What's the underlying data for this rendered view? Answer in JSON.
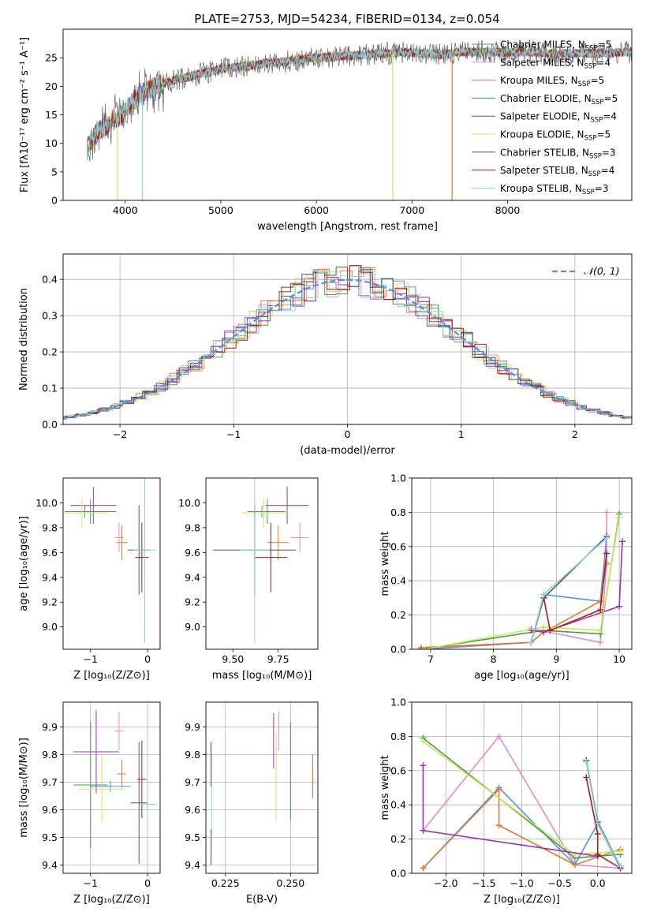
{
  "title": "PLATE=2753, MJD=54234, FIBERID=0134, z=0.054",
  "colors": {
    "c0": "#5a8ed6",
    "c1": "#e58cc8",
    "c2": "#e07b30",
    "c3": "#4a9a52",
    "c4": "#9a35b8",
    "c5": "#c9e85a",
    "c6": "#555555",
    "c7": "#a51c1c",
    "c8": "#8ad3e2",
    "ref": "#5a8ed6"
  },
  "legend_spectrum": [
    {
      "main": "Chabrier MILES, N",
      "sub": "SSP",
      "tail": "=5",
      "color": "c0"
    },
    {
      "main": "Salpeter MILES, N",
      "sub": "SSP",
      "tail": "=4",
      "color": "c1"
    },
    {
      "main": "Kroupa MILES, N",
      "sub": "SSP",
      "tail": "=5",
      "color": "c2"
    },
    {
      "main": "Chabrier ELODIE, N",
      "sub": "SSP",
      "tail": "=5",
      "color": "c3"
    },
    {
      "main": "Salpeter ELODIE, N",
      "sub": "SSP",
      "tail": "=4",
      "color": "c4"
    },
    {
      "main": "Kroupa ELODIE, N",
      "sub": "SSP",
      "tail": "=5",
      "color": "c5"
    },
    {
      "main": "Chabrier STELIB, N",
      "sub": "SSP",
      "tail": "=3",
      "color": "c6"
    },
    {
      "main": "Salpeter STELIB, N",
      "sub": "SSP",
      "tail": "=4",
      "color": "c7"
    },
    {
      "main": "Kroupa STELIB, N",
      "sub": "SSP",
      "tail": "=3",
      "color": "c8"
    }
  ],
  "chart_data": [
    {
      "id": "spectrum",
      "type": "line",
      "xlabel": "wavelength [Angstrom, rest frame]",
      "ylabel": "Flux [fλ10⁻¹⁷ erg cm⁻² s⁻¹ A⁻¹]",
      "xlim": [
        3350,
        9300
      ],
      "ylim": [
        0,
        30
      ],
      "xticks": [
        4000,
        5000,
        6000,
        7000,
        8000
      ],
      "yticks": [
        0,
        5,
        10,
        15,
        20,
        25
      ],
      "continuum": {
        "x": [
          3600,
          3700,
          3900,
          4000,
          4200,
          4500,
          5000,
          5500,
          6000,
          6500,
          7000,
          7300,
          7500,
          7800,
          8200,
          8500,
          8800,
          9000,
          9300
        ],
        "y": [
          9,
          12,
          14,
          16,
          19,
          21,
          23,
          24,
          25,
          25.5,
          26,
          25.5,
          26,
          26,
          26,
          25.7,
          25.7,
          25.8,
          26
        ]
      },
      "data_x_range": [
        3600,
        9300
      ]
    },
    {
      "id": "residuals",
      "type": "line",
      "xlabel": "(data-model)/error",
      "ylabel": "Normed distribution",
      "xlim": [
        -2.5,
        2.5
      ],
      "ylim": [
        0,
        0.47
      ],
      "xticks": [
        -2,
        -1,
        0,
        1,
        2
      ],
      "yticks": [
        0,
        0.1,
        0.2,
        0.3,
        0.4
      ],
      "legend": "𝒩(0, 1)",
      "bin_width": 0.1,
      "reference": {
        "mean": 0,
        "sigma": 1
      }
    },
    {
      "id": "z_age",
      "type": "scatter",
      "xlabel": "Z [log₁₀(Z/Z⊙)]",
      "ylabel": "age  [log₁₀(age/yr)]",
      "xlim": [
        -1.48,
        0.22
      ],
      "ylim": [
        8.82,
        10.2
      ],
      "xticks": [
        -1,
        0
      ],
      "yticks": [
        9.0,
        9.2,
        9.4,
        9.6,
        9.8,
        10.0
      ],
      "points": [
        {
          "c": "c0",
          "x": -1.1,
          "xe": 0.35,
          "y": 9.93,
          "ye": 0.05
        },
        {
          "c": "c1",
          "x": -0.5,
          "xe": 0.08,
          "y": 9.72,
          "ye": 0.12
        },
        {
          "c": "c2",
          "x": -0.45,
          "xe": 0.1,
          "y": 9.68,
          "ye": 0.14
        },
        {
          "c": "c3",
          "x": -1.0,
          "xe": 0.45,
          "y": 9.93,
          "ye": 0.1
        },
        {
          "c": "c4",
          "x": -0.95,
          "xe": 0.4,
          "y": 9.98,
          "ye": 0.15
        },
        {
          "c": "c5",
          "x": -1.15,
          "xe": 0.45,
          "y": 9.92,
          "ye": 0.12
        },
        {
          "c": "c6",
          "x": -0.15,
          "xe": 0.2,
          "y": 9.62,
          "ye": 0.36
        },
        {
          "c": "c7",
          "x": -0.1,
          "xe": 0.12,
          "y": 9.56,
          "ye": 0.28
        },
        {
          "c": "c8",
          "x": -0.05,
          "xe": 0.2,
          "y": 9.62,
          "ye": 0.75
        }
      ]
    },
    {
      "id": "mass_age",
      "type": "scatter",
      "xlabel": "mass [log₁₀(M/M⊙)]",
      "ylabel": "",
      "xlim": [
        9.35,
        9.97
      ],
      "ylim": [
        8.82,
        10.2
      ],
      "xticks": [
        9.5,
        9.75
      ],
      "yticks": [
        9.0,
        9.2,
        9.4,
        9.6,
        9.8,
        10.0
      ],
      "points": [
        {
          "c": "c0",
          "x": 9.66,
          "xe": 0.08,
          "y": 9.93,
          "ye": 0.05
        },
        {
          "c": "c1",
          "x": 9.87,
          "xe": 0.05,
          "y": 9.72,
          "ye": 0.12
        },
        {
          "c": "c2",
          "x": 9.75,
          "xe": 0.06,
          "y": 9.68,
          "ye": 0.14
        },
        {
          "c": "c3",
          "x": 9.69,
          "xe": 0.1,
          "y": 9.93,
          "ye": 0.1
        },
        {
          "c": "c4",
          "x": 9.8,
          "xe": 0.12,
          "y": 9.98,
          "ye": 0.15
        },
        {
          "c": "c5",
          "x": 9.67,
          "xe": 0.12,
          "y": 9.92,
          "ye": 0.12
        },
        {
          "c": "c6",
          "x": 9.62,
          "xe": 0.23,
          "y": 9.62,
          "ye": 0.36
        },
        {
          "c": "c7",
          "x": 9.71,
          "xe": 0.09,
          "y": 9.56,
          "ye": 0.28
        },
        {
          "c": "c8",
          "x": 9.62,
          "xe": 0.08,
          "y": 9.62,
          "ye": 0.75
        }
      ]
    },
    {
      "id": "age_weight",
      "type": "line",
      "xlabel": "age  [log₁₀(age/yr)]",
      "ylabel": "mass weight",
      "xlim": [
        6.7,
        10.2
      ],
      "ylim": [
        0,
        1.0
      ],
      "xticks": [
        7,
        8,
        9,
        10
      ],
      "yticks": [
        0.0,
        0.2,
        0.4,
        0.6,
        0.8,
        1.0
      ],
      "series": [
        {
          "c": "c0",
          "x": [
            6.85,
            8.6,
            8.8,
            9.7,
            9.8
          ],
          "y": [
            0.0,
            0.04,
            0.32,
            0.28,
            0.66
          ]
        },
        {
          "c": "c1",
          "x": [
            8.6,
            9.7,
            9.8,
            9.8
          ],
          "y": [
            0.12,
            0.04,
            0.5,
            0.8
          ]
        },
        {
          "c": "c2",
          "x": [
            6.85,
            8.6,
            8.8,
            9.7,
            9.8
          ],
          "y": [
            0.01,
            0.04,
            0.1,
            0.28,
            0.5
          ]
        },
        {
          "c": "c3",
          "x": [
            6.85,
            8.8,
            9.7,
            10.0
          ],
          "y": [
            0.0,
            0.11,
            0.09,
            0.79
          ]
        },
        {
          "c": "c4",
          "x": [
            8.6,
            8.8,
            10.0,
            10.05
          ],
          "y": [
            0.11,
            0.1,
            0.25,
            0.63
          ]
        },
        {
          "c": "c5",
          "x": [
            6.9,
            8.8,
            9.7,
            10.0
          ],
          "y": [
            0.0,
            0.13,
            0.11,
            0.77
          ]
        },
        {
          "c": "c6",
          "x": [
            8.6,
            8.8,
            9.8
          ],
          "y": [
            0.04,
            0.3,
            0.66
          ]
        },
        {
          "c": "c7",
          "x": [
            8.8,
            8.9,
            9.7,
            9.8
          ],
          "y": [
            0.3,
            0.11,
            0.23,
            0.56
          ]
        },
        {
          "c": "c8",
          "x": [
            8.6,
            8.8,
            9.8
          ],
          "y": [
            0.04,
            0.32,
            0.65
          ]
        }
      ]
    },
    {
      "id": "z_mass",
      "type": "scatter",
      "xlabel": "Z [log₁₀(Z/Z⊙)]",
      "ylabel": "mass [log₁₀(M/M⊙)]",
      "xlim": [
        -1.48,
        0.22
      ],
      "ylim": [
        9.37,
        9.99
      ],
      "xticks": [
        -1,
        0
      ],
      "yticks": [
        9.4,
        9.5,
        9.6,
        9.7,
        9.8,
        9.9
      ],
      "points": [
        {
          "c": "c0",
          "x": -0.65,
          "xe": 0.35,
          "y": 9.685,
          "ye": 0.02
        },
        {
          "c": "c1",
          "x": -0.5,
          "xe": 0.08,
          "y": 9.885,
          "ye": 0.07
        },
        {
          "c": "c2",
          "x": -0.45,
          "xe": 0.08,
          "y": 9.73,
          "ye": 0.05
        },
        {
          "c": "c3",
          "x": -1.0,
          "xe": 0.3,
          "y": 9.69,
          "ye": 0.23
        },
        {
          "c": "c4",
          "x": -0.9,
          "xe": 0.4,
          "y": 9.81,
          "ye": 0.15
        },
        {
          "c": "c5",
          "x": -0.8,
          "xe": 0.4,
          "y": 9.675,
          "ye": 0.12
        },
        {
          "c": "c6",
          "x": -0.15,
          "xe": 0.15,
          "y": 9.625,
          "ye": 0.22
        },
        {
          "c": "c7",
          "x": -0.1,
          "xe": 0.08,
          "y": 9.71,
          "ye": 0.14
        },
        {
          "c": "c8",
          "x": 0.0,
          "xe": 0.15,
          "y": 9.62,
          "ye": 0.05
        }
      ]
    },
    {
      "id": "ebv_mass",
      "type": "scatter",
      "xlabel": "E(B-V)",
      "ylabel": "",
      "xlim": [
        0.2175,
        0.2605
      ],
      "ylim": [
        9.37,
        9.99
      ],
      "xticks": [
        0.225,
        0.25
      ],
      "yticks": [
        9.4,
        9.5,
        9.6,
        9.7,
        9.8,
        9.9
      ],
      "points": [
        {
          "c": "c0",
          "x": 0.2585,
          "y": 9.72,
          "ye": 0.08
        },
        {
          "c": "c1",
          "x": 0.2455,
          "y": 9.885,
          "ye": 0.07
        },
        {
          "c": "c2",
          "x": 0.2585,
          "y": 9.73,
          "ye": 0.05
        },
        {
          "c": "c3",
          "x": 0.25,
          "y": 9.74,
          "ye": 0.18
        },
        {
          "c": "c4",
          "x": 0.2435,
          "y": 9.85,
          "ye": 0.1
        },
        {
          "c": "c5",
          "x": 0.2445,
          "y": 9.72,
          "ye": 0.16
        },
        {
          "c": "c6",
          "x": 0.2195,
          "y": 9.465,
          "ye": 0.065
        },
        {
          "c": "c7",
          "x": 0.2195,
          "y": 9.765,
          "ye": 0.08
        },
        {
          "c": "c8",
          "x": 0.2197,
          "y": 9.62,
          "ye": 0.18
        }
      ]
    },
    {
      "id": "z_weight",
      "type": "line",
      "xlabel": "Z [log₁₀(Z/Z⊙)]",
      "ylabel": "mass weight",
      "xlim": [
        -2.45,
        0.45
      ],
      "ylim": [
        0,
        1.0
      ],
      "xticks": [
        -2.0,
        -1.5,
        -1.0,
        -0.5,
        0.0
      ],
      "yticks": [
        0.0,
        0.2,
        0.4,
        0.6,
        0.8,
        1.0
      ],
      "series": [
        {
          "c": "c1",
          "x": [
            -2.3,
            -1.3,
            -0.3,
            0.3
          ],
          "y": [
            0.25,
            0.8,
            0.05,
            0.03
          ]
        },
        {
          "c": "c0",
          "x": [
            -2.3,
            -1.3,
            -0.3,
            0.0,
            0.3
          ],
          "y": [
            0.03,
            0.5,
            0.05,
            0.29,
            0.03
          ]
        },
        {
          "c": "c2",
          "x": [
            -2.3,
            -1.3,
            -1.3,
            -0.3,
            0.3
          ],
          "y": [
            0.03,
            0.49,
            0.28,
            0.05,
            0.14
          ]
        },
        {
          "c": "c3",
          "x": [
            -2.3,
            -0.3,
            0.3
          ],
          "y": [
            0.79,
            0.09,
            0.11
          ]
        },
        {
          "c": "c5",
          "x": [
            -2.3,
            -0.3,
            0.3
          ],
          "y": [
            0.77,
            0.11,
            0.13
          ]
        },
        {
          "c": "c4",
          "x": [
            -2.3,
            -2.3,
            0.0
          ],
          "y": [
            0.63,
            0.25,
            0.1
          ]
        },
        {
          "c": "c6",
          "x": [
            -0.15,
            0.0,
            0.3
          ],
          "y": [
            0.66,
            0.3,
            0.04
          ]
        },
        {
          "c": "c7",
          "x": [
            -0.15,
            0.0,
            0.0,
            0.3
          ],
          "y": [
            0.56,
            0.23,
            0.11,
            0.03
          ]
        },
        {
          "c": "c8",
          "x": [
            -0.15,
            0.0,
            0.3
          ],
          "y": [
            0.65,
            0.29,
            0.04
          ]
        }
      ]
    }
  ]
}
